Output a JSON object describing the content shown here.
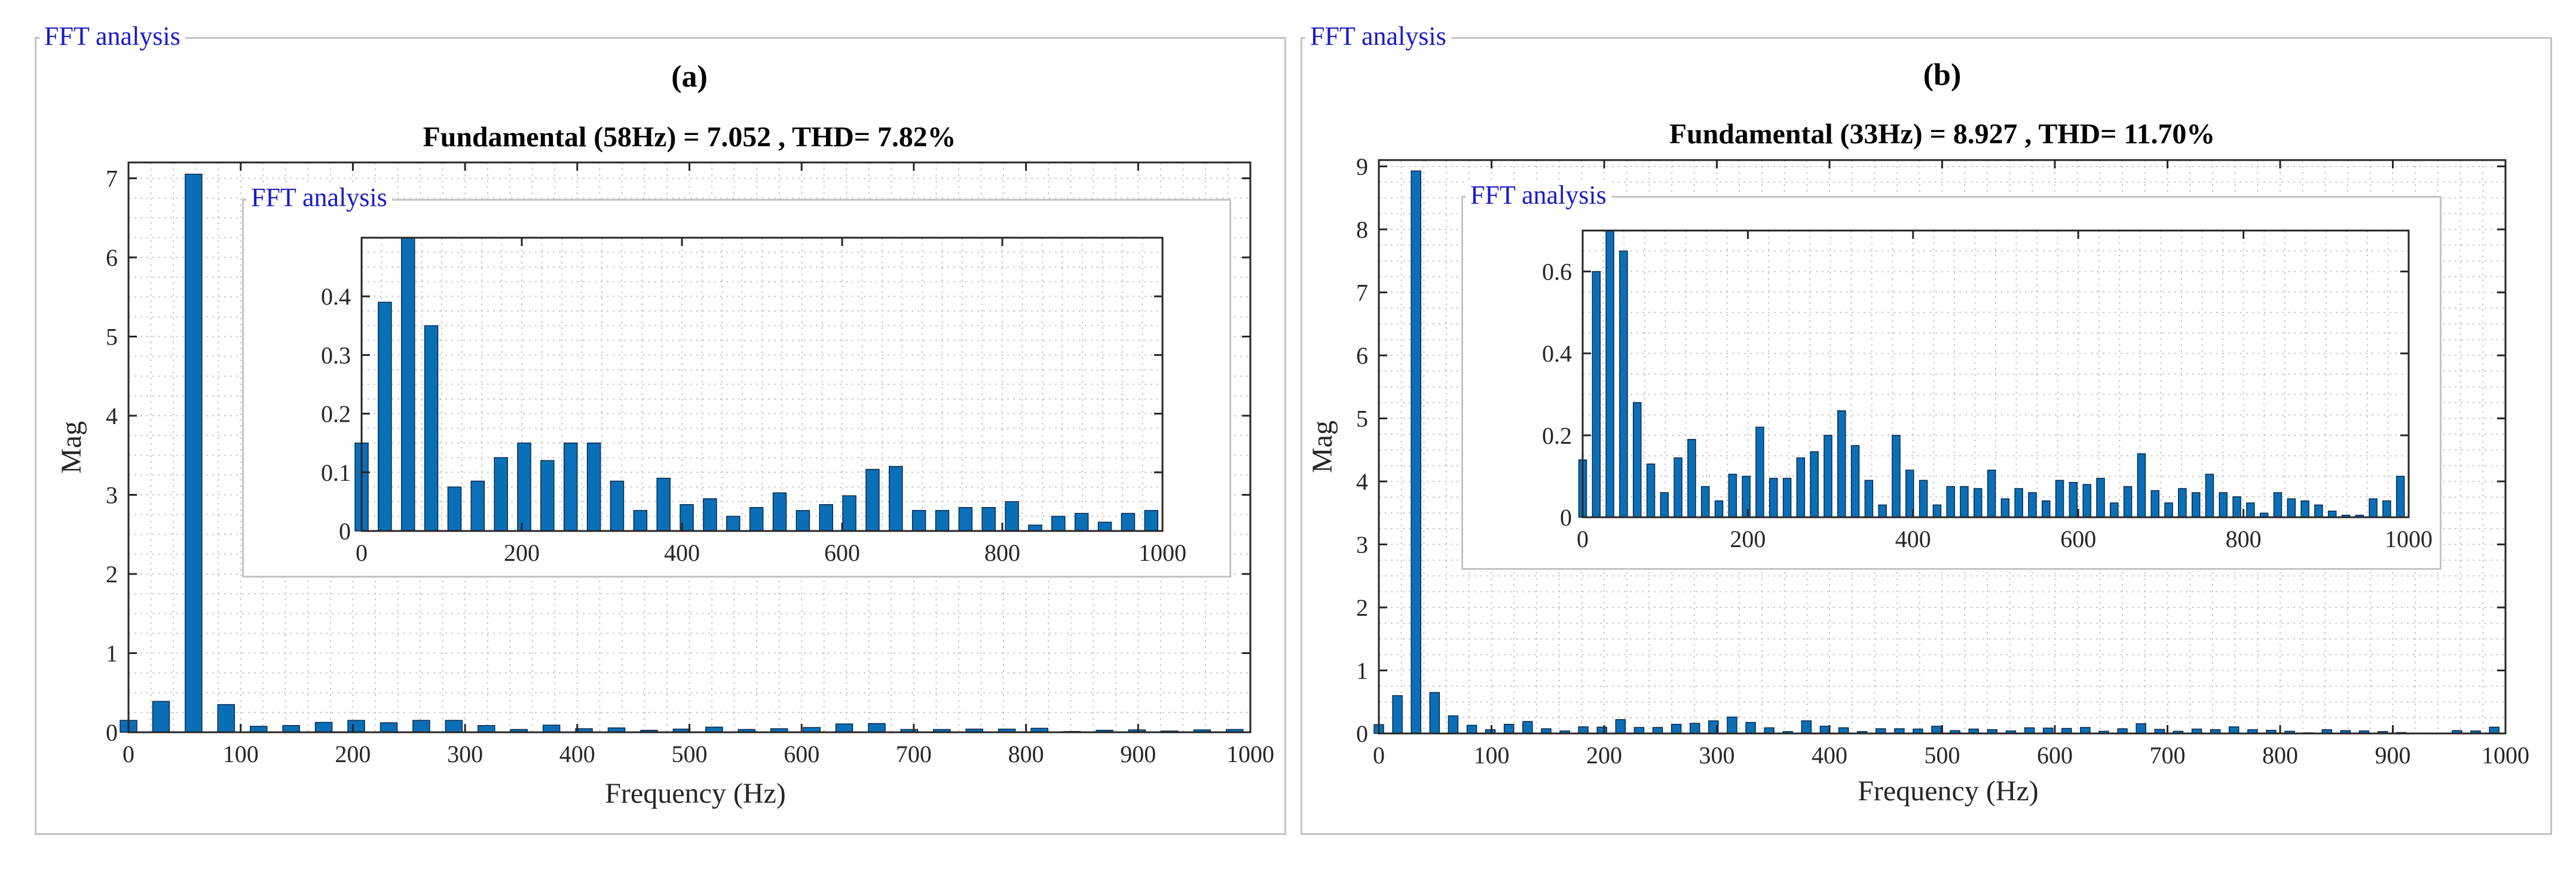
{
  "panel_legend": "FFT analysis",
  "colors": {
    "bar": "#0b6fb8",
    "bar_edge": "#0a2a4a",
    "grid": "#c9c9c9",
    "frame": "#c4c4c4",
    "legend_text": "#1a1acc"
  },
  "chart_data": [
    {
      "type": "bar",
      "label": "(a)",
      "title": "Fundamental (58Hz) = 7.052 , THD= 7.82%",
      "xlabel": "Frequency (Hz)",
      "ylabel": "Mag",
      "xlim": [
        0,
        1000
      ],
      "ylim": [
        0,
        7.2
      ],
      "xticks": [
        0,
        100,
        200,
        300,
        400,
        500,
        600,
        700,
        800,
        900,
        1000
      ],
      "yticks": [
        0,
        1,
        2,
        3,
        4,
        5,
        6,
        7
      ],
      "grid": true,
      "x": [
        0,
        29,
        58,
        87,
        116,
        145,
        174,
        203,
        232,
        261,
        290,
        319,
        348,
        377,
        406,
        435,
        464,
        493,
        522,
        551,
        580,
        609,
        638,
        667,
        696,
        725,
        754,
        783,
        812,
        841,
        870,
        899,
        928,
        957,
        986
      ],
      "values": [
        0.15,
        0.39,
        7.052,
        0.35,
        0.075,
        0.085,
        0.125,
        0.15,
        0.12,
        0.15,
        0.15,
        0.085,
        0.035,
        0.09,
        0.045,
        0.055,
        0.025,
        0.04,
        0.065,
        0.035,
        0.045,
        0.06,
        0.105,
        0.11,
        0.035,
        0.035,
        0.04,
        0.04,
        0.05,
        0.01,
        0.025,
        0.03,
        0.015,
        0.03,
        0.035
      ],
      "inset": {
        "legend": "FFT analysis",
        "xlim": [
          0,
          1000
        ],
        "ylim": [
          0,
          0.5
        ],
        "xticks": [
          0,
          200,
          400,
          600,
          800,
          1000
        ],
        "yticks": [
          0,
          0.1,
          0.2,
          0.3,
          0.4
        ],
        "ytick_labels": [
          "0",
          "0.1",
          "0.2",
          "0.3",
          "0.4"
        ]
      }
    },
    {
      "type": "bar",
      "label": "(b)",
      "title": "Fundamental (33Hz) = 8.927 , THD= 11.70%",
      "xlabel": "Frequency (Hz)",
      "ylabel": "Mag",
      "xlim": [
        0,
        1000
      ],
      "ylim": [
        0,
        9.1
      ],
      "xticks": [
        0,
        100,
        200,
        300,
        400,
        500,
        600,
        700,
        800,
        900,
        1000
      ],
      "yticks": [
        0,
        1,
        2,
        3,
        4,
        5,
        6,
        7,
        8,
        9
      ],
      "grid": true,
      "x": [
        0,
        16.5,
        33,
        49.5,
        66,
        82.5,
        99,
        115.5,
        132,
        148.5,
        165,
        181.5,
        198,
        214.5,
        231,
        247.5,
        264,
        280.5,
        297,
        313.5,
        330,
        346.5,
        363,
        379.5,
        396,
        412.5,
        429,
        445.5,
        462,
        478.5,
        495,
        511.5,
        528,
        544.5,
        561,
        577.5,
        594,
        610.5,
        627,
        643.5,
        660,
        676.5,
        693,
        709.5,
        726,
        742.5,
        759,
        775.5,
        792,
        808.5,
        825,
        841.5,
        858,
        874.5,
        891,
        907.5,
        924,
        940.5,
        957,
        973.5,
        990
      ],
      "values": [
        0.14,
        0.6,
        8.927,
        0.65,
        0.28,
        0.13,
        0.06,
        0.145,
        0.19,
        0.075,
        0.04,
        0.105,
        0.1,
        0.22,
        0.095,
        0.095,
        0.145,
        0.16,
        0.2,
        0.26,
        0.175,
        0.09,
        0.03,
        0.2,
        0.115,
        0.09,
        0.03,
        0.075,
        0.075,
        0.07,
        0.115,
        0.045,
        0.07,
        0.06,
        0.04,
        0.09,
        0.085,
        0.08,
        0.095,
        0.035,
        0.075,
        0.155,
        0.065,
        0.035,
        0.07,
        0.06,
        0.105,
        0.06,
        0.05,
        0.035,
        0.01,
        0.06,
        0.045,
        0.04,
        0.03,
        0.015,
        0.005,
        0.005,
        0.045,
        0.04,
        0.1
      ],
      "inset": {
        "legend": "FFT analysis",
        "xlim": [
          0,
          1000
        ],
        "ylim": [
          0,
          0.7
        ],
        "xticks": [
          0,
          200,
          400,
          600,
          800,
          1000
        ],
        "yticks": [
          0,
          0.2,
          0.4,
          0.6
        ],
        "ytick_labels": [
          "0",
          "0.2",
          "0.4",
          "0.6"
        ]
      }
    }
  ]
}
